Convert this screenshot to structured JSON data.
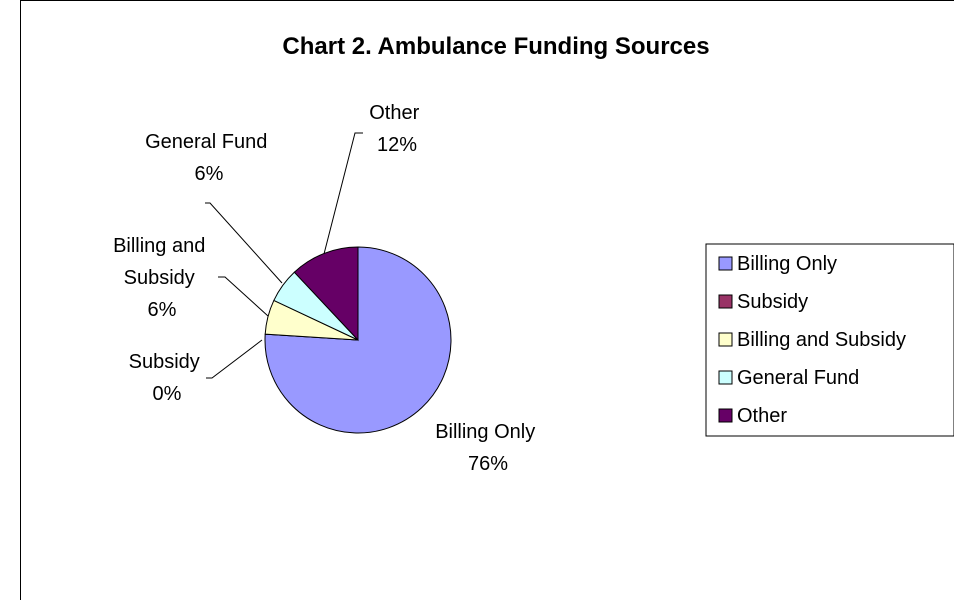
{
  "chart_data": {
    "type": "pie",
    "title": "Chart 2.  Ambulance Funding Sources",
    "slices": [
      {
        "label": "Billing Only",
        "percent": 76,
        "percent_label": "76%",
        "color": "#9999ff"
      },
      {
        "label": "Subsidy",
        "percent": 0,
        "percent_label": "0%",
        "color": "#993366"
      },
      {
        "label": "Billing and Subsidy",
        "percent": 6,
        "percent_label": "6%",
        "color": "#ffffcc"
      },
      {
        "label": "General Fund",
        "percent": 6,
        "percent_label": "6%",
        "color": "#ccffff"
      },
      {
        "label": "Other",
        "percent": 12,
        "percent_label": "12%",
        "color": "#660066"
      }
    ],
    "legend": {
      "placement": "right",
      "entries": [
        "Billing Only",
        "Subsidy",
        "Billing and Subsidy",
        "General Fund",
        "Other"
      ]
    },
    "slice_labels": {
      "billing_only": [
        "Billing Only",
        "76%"
      ],
      "subsidy": [
        "Subsidy",
        "0%"
      ],
      "billing_and_subsidy": [
        "Billing and",
        "Subsidy",
        "6%"
      ],
      "general_fund": [
        "General Fund",
        "6%"
      ],
      "other": [
        "Other",
        "12%"
      ]
    }
  }
}
